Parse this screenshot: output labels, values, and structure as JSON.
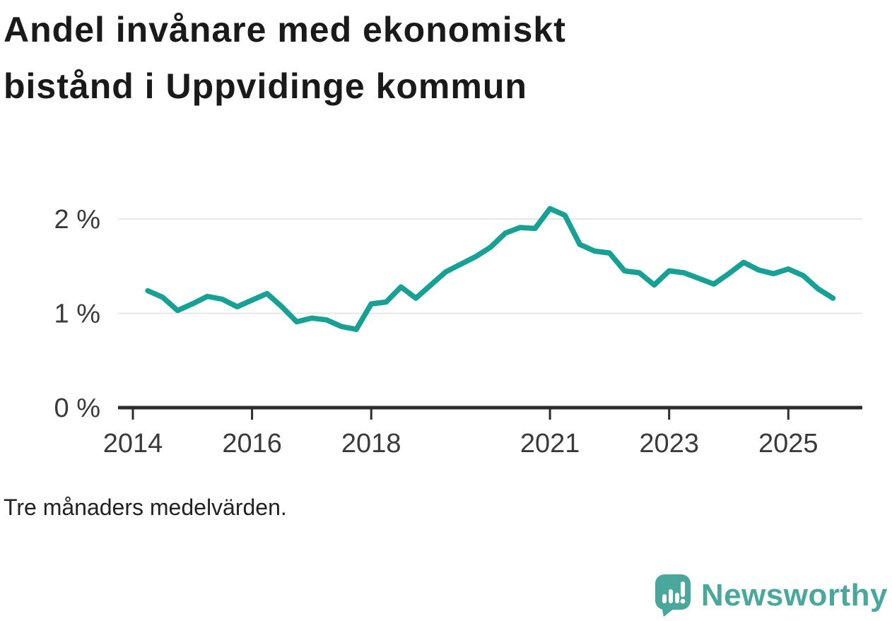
{
  "title": "Andel invånare med ekonomiskt bistånd i Uppvidinge kommun",
  "title_lines": [
    "Andel invånare med ekonomiskt",
    "bistånd i Uppvidinge kommun"
  ],
  "footnote": "Tre månaders medelvärden.",
  "brand": {
    "name": "Newsworthy",
    "color": "#49A79B"
  },
  "chart_data": {
    "type": "line",
    "title": "Andel invånare med ekonomiskt bistånd i Uppvidinge kommun",
    "subtitle": "Tre månaders medelvärden.",
    "unit": "%",
    "line_color": "#17A094",
    "grid": "horizontal-only",
    "legend": "none",
    "xlim": [
      2013.75,
      2026.2
    ],
    "ylim": [
      0,
      2.25
    ],
    "x_ticks": [
      2014,
      2016,
      2018,
      2021,
      2023,
      2025
    ],
    "y_ticks": [
      {
        "value": 0,
        "label": "0 %"
      },
      {
        "value": 1,
        "label": "1 %"
      },
      {
        "value": 2,
        "label": "2 %"
      }
    ],
    "x": [
      2014.25,
      2014.5,
      2014.75,
      2015.0,
      2015.25,
      2015.5,
      2015.75,
      2016.0,
      2016.25,
      2016.5,
      2016.75,
      2017.0,
      2017.25,
      2017.5,
      2017.75,
      2018.0,
      2018.25,
      2018.5,
      2018.75,
      2019.0,
      2019.25,
      2019.5,
      2019.75,
      2020.0,
      2020.25,
      2020.5,
      2020.75,
      2021.0,
      2021.25,
      2021.5,
      2021.75,
      2022.0,
      2022.25,
      2022.5,
      2022.75,
      2023.0,
      2023.25,
      2023.5,
      2023.75,
      2024.0,
      2024.25,
      2024.5,
      2024.75,
      2025.0,
      2025.25,
      2025.5,
      2025.75
    ],
    "values": [
      1.24,
      1.17,
      1.03,
      1.1,
      1.18,
      1.15,
      1.07,
      1.14,
      1.21,
      1.07,
      0.91,
      0.95,
      0.93,
      0.86,
      0.83,
      1.1,
      1.12,
      1.28,
      1.16,
      1.3,
      1.44,
      1.52,
      1.6,
      1.7,
      1.85,
      1.91,
      1.9,
      2.11,
      2.04,
      1.73,
      1.66,
      1.64,
      1.45,
      1.43,
      1.3,
      1.45,
      1.43,
      1.37,
      1.31,
      1.42,
      1.54,
      1.46,
      1.42,
      1.47,
      1.4,
      1.26,
      1.16
    ]
  },
  "axis_style": {
    "axis_color": "#2d2d2d",
    "grid_color": "#e6e6e6",
    "label_color": "#3a3a3a"
  }
}
